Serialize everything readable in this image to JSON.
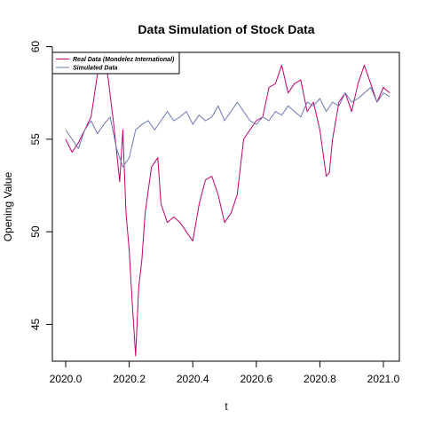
{
  "chart_data": {
    "type": "line",
    "title": "Data Simulation of Stock Data",
    "xlabel": "t",
    "ylabel": "Opening Value",
    "xlim": [
      2020.0,
      2021.0
    ],
    "ylim": [
      43.2,
      59.5
    ],
    "x_ticks": [
      2020.0,
      2020.2,
      2020.4,
      2020.6,
      2020.8,
      2021.0
    ],
    "x_tick_labels": [
      "2020.0",
      "2020.2",
      "2020.4",
      "2020.6",
      "2020.8",
      "2021.0"
    ],
    "y_ticks": [
      45,
      50,
      55,
      60
    ],
    "y_tick_labels": [
      "45",
      "50",
      "55",
      "60"
    ],
    "grid": false,
    "legend_position": "top-left",
    "series": [
      {
        "name": "Real Data (Mondelez International)",
        "color": "#c0006e",
        "x": [
          2020.0,
          2020.02,
          2020.04,
          2020.06,
          2020.08,
          2020.1,
          2020.11,
          2020.12,
          2020.13,
          2020.15,
          2020.17,
          2020.18,
          2020.19,
          2020.2,
          2020.21,
          2020.22,
          2020.23,
          2020.24,
          2020.25,
          2020.27,
          2020.29,
          2020.3,
          2020.32,
          2020.34,
          2020.36,
          2020.38,
          2020.4,
          2020.42,
          2020.44,
          2020.46,
          2020.48,
          2020.5,
          2020.52,
          2020.54,
          2020.56,
          2020.58,
          2020.6,
          2020.62,
          2020.64,
          2020.66,
          2020.68,
          2020.7,
          2020.72,
          2020.74,
          2020.76,
          2020.78,
          2020.8,
          2020.82,
          2020.83,
          2020.84,
          2020.86,
          2020.88,
          2020.9,
          2020.92,
          2020.94,
          2020.96,
          2020.98,
          2021.0,
          2021.02
        ],
        "y": [
          55.0,
          54.3,
          54.8,
          55.5,
          56.2,
          58.5,
          59.2,
          59.5,
          58.8,
          56.0,
          52.7,
          55.5,
          51.0,
          49.0,
          46.0,
          43.3,
          47.0,
          48.5,
          51.0,
          53.5,
          54.0,
          51.5,
          50.5,
          50.8,
          50.5,
          50.0,
          49.5,
          51.5,
          52.8,
          53.0,
          52.0,
          50.5,
          51.0,
          52.0,
          55.0,
          55.5,
          56.0,
          56.2,
          57.8,
          58.0,
          59.0,
          57.5,
          58.0,
          58.2,
          56.5,
          57.0,
          55.5,
          53.0,
          53.2,
          55.0,
          57.0,
          57.5,
          56.5,
          58.0,
          59.0,
          58.0,
          57.0,
          57.8,
          57.5
        ]
      },
      {
        "name": "Simulated Data",
        "color": "#6a78b5",
        "x": [
          2020.0,
          2020.02,
          2020.04,
          2020.06,
          2020.08,
          2020.1,
          2020.12,
          2020.14,
          2020.16,
          2020.18,
          2020.2,
          2020.22,
          2020.24,
          2020.26,
          2020.28,
          2020.3,
          2020.32,
          2020.34,
          2020.36,
          2020.38,
          2020.4,
          2020.42,
          2020.44,
          2020.46,
          2020.48,
          2020.5,
          2020.52,
          2020.54,
          2020.56,
          2020.58,
          2020.6,
          2020.62,
          2020.64,
          2020.66,
          2020.68,
          2020.7,
          2020.72,
          2020.74,
          2020.76,
          2020.78,
          2020.8,
          2020.82,
          2020.84,
          2020.86,
          2020.88,
          2020.9,
          2020.92,
          2020.94,
          2020.96,
          2020.98,
          2021.0,
          2021.02
        ],
        "y": [
          55.5,
          55.0,
          54.5,
          55.5,
          56.0,
          55.3,
          55.8,
          56.2,
          54.5,
          53.5,
          54.0,
          55.5,
          55.8,
          56.0,
          55.5,
          56.0,
          56.5,
          56.0,
          56.2,
          56.5,
          55.8,
          56.3,
          56.0,
          56.2,
          56.8,
          56.0,
          56.5,
          57.0,
          56.5,
          56.0,
          55.8,
          56.2,
          56.0,
          56.5,
          56.3,
          56.8,
          56.5,
          56.2,
          57.0,
          56.8,
          57.2,
          56.5,
          57.0,
          56.8,
          57.5,
          57.0,
          57.2,
          57.5,
          57.8,
          57.0,
          57.5,
          57.3
        ]
      }
    ]
  }
}
